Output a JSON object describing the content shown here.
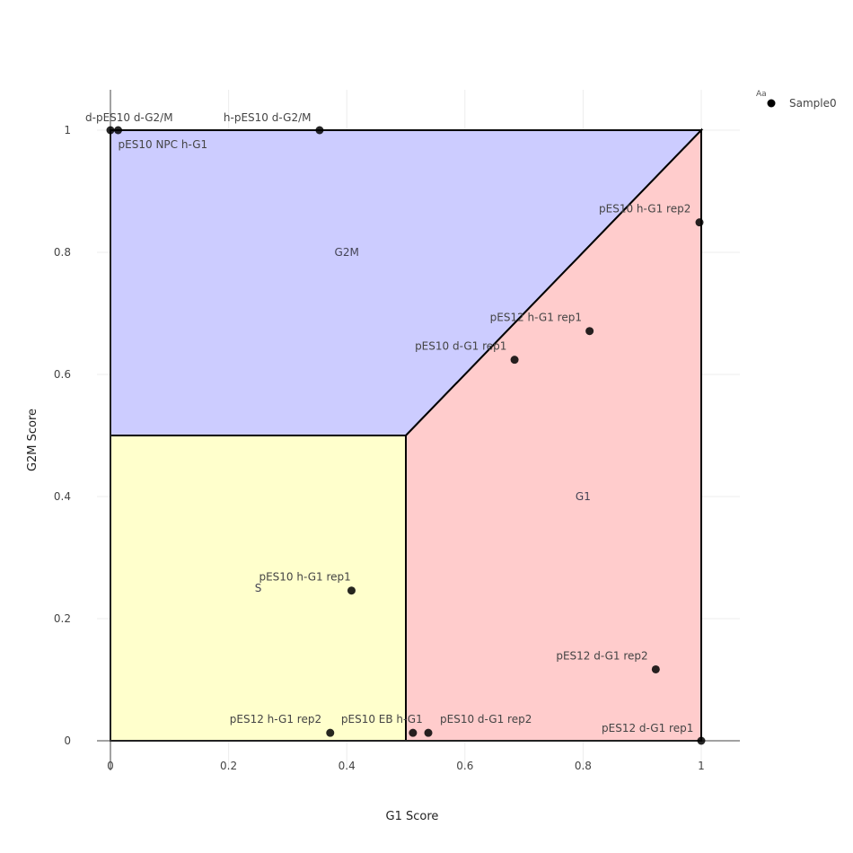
{
  "chart_data": {
    "type": "scatter",
    "xlabel": "G1 Score",
    "ylabel": "G2M Score",
    "xlim": [
      0,
      1
    ],
    "ylim": [
      0,
      1
    ],
    "x_ticks": [
      "0",
      "0.2",
      "0.4",
      "0.6",
      "0.8",
      "1"
    ],
    "y_ticks": [
      "0",
      "0.2",
      "0.4",
      "0.6",
      "0.8",
      "1"
    ],
    "grid": true,
    "legend": {
      "placement": "top-right",
      "symbol_text": "Aa",
      "entries": [
        "Sample0"
      ]
    },
    "regions": [
      {
        "label": "G2M",
        "color": "#ccccff",
        "polygon": [
          [
            0,
            0.5
          ],
          [
            0,
            1
          ],
          [
            1,
            1
          ],
          [
            0.5,
            0.5
          ]
        ],
        "label_at": [
          0.4,
          0.8
        ]
      },
      {
        "label": "S",
        "color": "#ffffcc",
        "polygon": [
          [
            0,
            0
          ],
          [
            0,
            0.5
          ],
          [
            0.5,
            0.5
          ],
          [
            0.5,
            0
          ]
        ],
        "label_at": [
          0.25,
          0.25
        ]
      },
      {
        "label": "G1",
        "color": "#ffcccc",
        "polygon": [
          [
            0.5,
            0
          ],
          [
            0.5,
            0.5
          ],
          [
            1,
            1
          ],
          [
            1,
            0
          ]
        ],
        "label_at": [
          0.8,
          0.4
        ]
      }
    ],
    "series": [
      {
        "name": "Sample0",
        "color": "#000000",
        "points": [
          {
            "label": "d-pES10 d-G2/M",
            "x": 0.0,
            "y": 1.0
          },
          {
            "label": "pES10 NPC h-G1",
            "x": 0.013,
            "y": 1.0
          },
          {
            "label": "h-pES10 d-G2/M",
            "x": 0.354,
            "y": 1.0
          },
          {
            "label": "pES10 h-G1 rep2",
            "x": 0.997,
            "y": 0.849
          },
          {
            "label": "pES12 h-G1 rep1",
            "x": 0.811,
            "y": 0.671
          },
          {
            "label": "pES10 d-G1 rep1",
            "x": 0.684,
            "y": 0.624
          },
          {
            "label": "pES10 h-G1 rep1",
            "x": 0.408,
            "y": 0.246
          },
          {
            "label": "pES12 d-G1 rep2",
            "x": 0.923,
            "y": 0.117
          },
          {
            "label": "pES12 h-G1 rep2",
            "x": 0.372,
            "y": 0.013
          },
          {
            "label": "pES10 EB h-G1",
            "x": 0.512,
            "y": 0.013
          },
          {
            "label": "pES10 d-G1 rep2",
            "x": 0.538,
            "y": 0.013
          },
          {
            "label": "pES12 d-G1 rep1",
            "x": 1.0,
            "y": 0.0
          }
        ]
      }
    ]
  }
}
